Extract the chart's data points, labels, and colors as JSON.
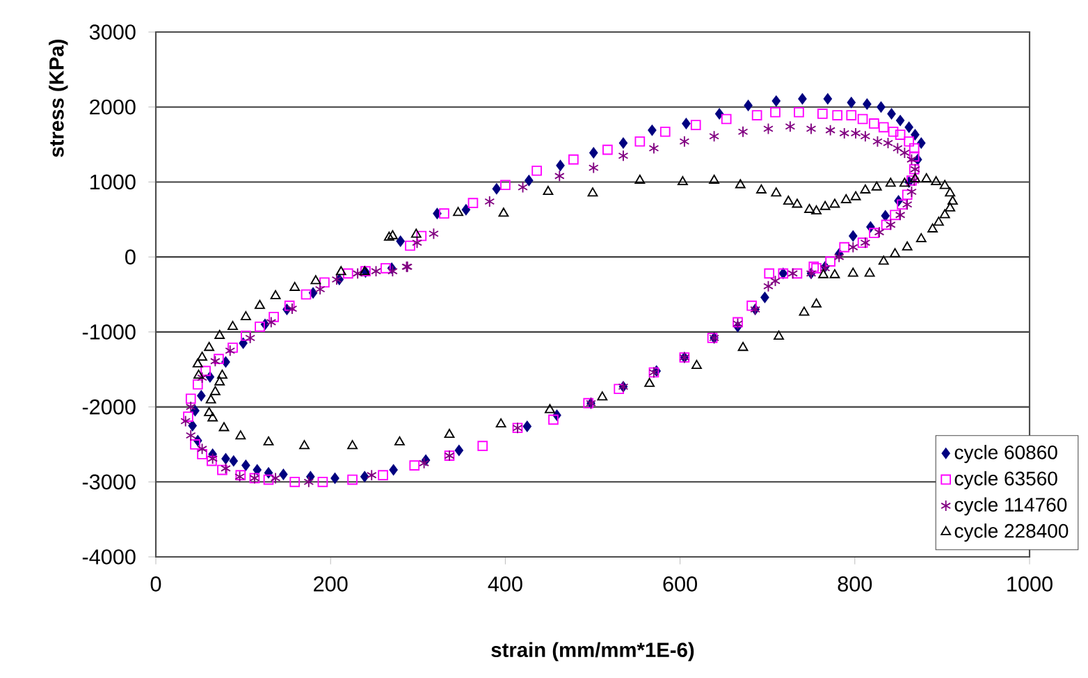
{
  "chart_data": {
    "type": "scatter",
    "xlabel": "strain (mm/mm*1E-6)",
    "ylabel": "stress (KPa)",
    "xlim": [
      0,
      1000
    ],
    "ylim": [
      -4000,
      3000
    ],
    "xticks": [
      0,
      200,
      400,
      600,
      800,
      1000
    ],
    "yticks": [
      -4000,
      -3000,
      -2000,
      -1000,
      0,
      1000,
      2000,
      3000
    ],
    "grid": "y",
    "legend": "bottom right",
    "series": [
      {
        "name": "cycle 60860",
        "color": "#000080",
        "marker": "diamond",
        "x": [
          280,
          322,
          355,
          390,
          427,
          463,
          501,
          535,
          568,
          607,
          645,
          678,
          710,
          740,
          769,
          796,
          814,
          830,
          842,
          852,
          862,
          869,
          876,
          872,
          862,
          850,
          835,
          818,
          798,
          782,
          766,
          750,
          718,
          697,
          686,
          666,
          639,
          605,
          573,
          535,
          498,
          459,
          425,
          347,
          309,
          272,
          239,
          205,
          177,
          146,
          129,
          116,
          103,
          89,
          80,
          65,
          48,
          42,
          45,
          52,
          62,
          80,
          100,
          125,
          150,
          180,
          210,
          240,
          270
        ],
        "values": [
          210,
          580,
          630,
          910,
          1020,
          1220,
          1390,
          1520,
          1690,
          1780,
          1910,
          2020,
          2080,
          2110,
          2110,
          2060,
          2040,
          2000,
          1910,
          1820,
          1730,
          1630,
          1520,
          1300,
          1000,
          750,
          550,
          400,
          280,
          40,
          -130,
          -220,
          -220,
          -540,
          -700,
          -930,
          -1080,
          -1340,
          -1520,
          -1730,
          -1950,
          -2110,
          -2260,
          -2580,
          -2710,
          -2840,
          -2930,
          -2950,
          -2930,
          -2900,
          -2880,
          -2840,
          -2780,
          -2720,
          -2690,
          -2630,
          -2450,
          -2250,
          -2050,
          -1850,
          -1600,
          -1400,
          -1150,
          -900,
          -700,
          -480,
          -300,
          -200,
          -150
        ]
      },
      {
        "name": "cycle 63560",
        "color": "#ff00ff",
        "marker": "square",
        "x": [
          291,
          304,
          330,
          363,
          400,
          436,
          478,
          517,
          554,
          583,
          618,
          653,
          688,
          709,
          736,
          763,
          780,
          796,
          809,
          822,
          833,
          844,
          852,
          862,
          868,
          868,
          868,
          865,
          860,
          854,
          846,
          836,
          822,
          809,
          788,
          772,
          753,
          756,
          734,
          718,
          702,
          682,
          666,
          637,
          605,
          570,
          530,
          495,
          455,
          414,
          374,
          336,
          296,
          260,
          225,
          191,
          159,
          129,
          113,
          97,
          76,
          64,
          53,
          45,
          37,
          40,
          48,
          57,
          72,
          88,
          103,
          119,
          135,
          153,
          172,
          193,
          220,
          240,
          263
        ],
        "values": [
          150,
          280,
          580,
          720,
          960,
          1150,
          1300,
          1430,
          1540,
          1670,
          1760,
          1840,
          1890,
          1930,
          1930,
          1910,
          1890,
          1890,
          1840,
          1780,
          1730,
          1670,
          1630,
          1540,
          1450,
          1340,
          1170,
          1020,
          830,
          700,
          560,
          430,
          320,
          190,
          130,
          -60,
          -130,
          -150,
          -220,
          -220,
          -220,
          -650,
          -870,
          -1080,
          -1340,
          -1540,
          -1760,
          -1950,
          -2170,
          -2280,
          -2520,
          -2650,
          -2780,
          -2910,
          -2970,
          -3000,
          -3000,
          -2970,
          -2950,
          -2910,
          -2840,
          -2720,
          -2630,
          -2500,
          -2130,
          -1890,
          -1700,
          -1520,
          -1360,
          -1210,
          -1050,
          -930,
          -800,
          -650,
          -500,
          -340,
          -220,
          -190,
          -150
        ]
      },
      {
        "name": "cycle 114760",
        "color": "#800080",
        "marker": "cross",
        "x": [
          287,
          299,
          318,
          382,
          420,
          462,
          501,
          535,
          570,
          605,
          639,
          672,
          701,
          726,
          750,
          772,
          788,
          801,
          812,
          826,
          838,
          849,
          857,
          865,
          869,
          868,
          865,
          860,
          852,
          841,
          828,
          812,
          798,
          782,
          766,
          750,
          729,
          709,
          701,
          686,
          666,
          639,
          605,
          570,
          535,
          498,
          414,
          336,
          307,
          247,
          175,
          137,
          113,
          96,
          80,
          65,
          53,
          40,
          34,
          40,
          53,
          68,
          85,
          108,
          132,
          156,
          188,
          207,
          231,
          252,
          271,
          288
        ],
        "values": [
          -130,
          190,
          310,
          740,
          930,
          1080,
          1190,
          1350,
          1450,
          1540,
          1610,
          1670,
          1710,
          1740,
          1710,
          1690,
          1650,
          1650,
          1610,
          1540,
          1520,
          1450,
          1390,
          1300,
          1170,
          1020,
          870,
          700,
          560,
          430,
          330,
          190,
          130,
          0,
          -150,
          -220,
          -220,
          -320,
          -390,
          -700,
          -890,
          -1080,
          -1340,
          -1540,
          -1730,
          -1950,
          -2280,
          -2650,
          -2750,
          -2910,
          -3000,
          -2950,
          -2950,
          -2930,
          -2820,
          -2690,
          -2560,
          -2380,
          -2190,
          -2000,
          -1610,
          -1390,
          -1250,
          -1080,
          -870,
          -690,
          -430,
          -300,
          -220,
          -190,
          -190,
          -130
        ]
      },
      {
        "name": "cycle 228400",
        "color": "#000000",
        "marker": "triangle",
        "x": [
          267,
          298,
          346,
          398,
          449,
          500,
          554,
          603,
          639,
          669,
          693,
          710,
          724,
          734,
          748,
          756,
          766,
          777,
          790,
          801,
          812,
          825,
          841,
          857,
          869,
          882,
          893,
          903,
          909,
          912,
          909,
          903,
          896,
          889,
          876,
          860,
          846,
          833,
          817,
          798,
          777,
          764,
          756,
          742,
          713,
          672,
          619,
          565,
          511,
          451,
          395,
          336,
          279,
          225,
          170,
          129,
          97,
          78,
          65,
          61,
          63,
          68,
          73,
          76,
          49,
          48,
          53,
          61,
          73,
          88,
          103,
          119,
          137,
          159,
          183,
          212,
          239,
          271
        ],
        "values": [
          260,
          300,
          590,
          580,
          870,
          850,
          1020,
          1000,
          1020,
          960,
          890,
          850,
          740,
          700,
          630,
          610,
          670,
          700,
          760,
          800,
          890,
          930,
          980,
          980,
          1040,
          1040,
          1000,
          950,
          850,
          740,
          650,
          560,
          460,
          370,
          240,
          130,
          40,
          -60,
          -220,
          -220,
          -240,
          -240,
          -630,
          -740,
          -1060,
          -1210,
          -1450,
          -1690,
          -1870,
          -2040,
          -2230,
          -2370,
          -2470,
          -2520,
          -2520,
          -2470,
          -2390,
          -2280,
          -2150,
          -2080,
          -1910,
          -1800,
          -1670,
          -1580,
          -1580,
          -1430,
          -1340,
          -1210,
          -1050,
          -930,
          -800,
          -650,
          -520,
          -410,
          -320,
          -200,
          -200,
          280
        ]
      }
    ]
  }
}
